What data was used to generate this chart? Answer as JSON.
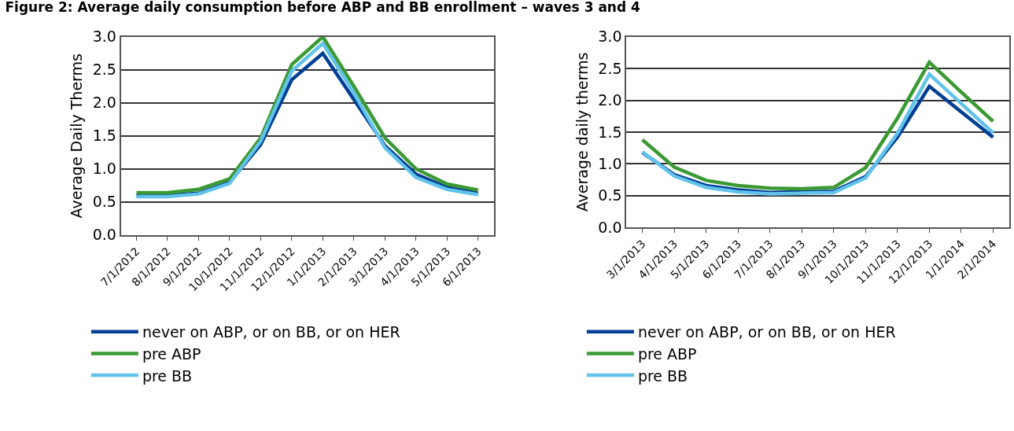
{
  "chart_data": [
    {
      "type": "line",
      "title": "Figure 2: Average daily consumption before ABP and BB enrollment – waves 3 and 4",
      "ylabel": "Average Daily Therms",
      "categories": [
        "7/1/2012",
        "8/1/2012",
        "9/1/2012",
        "10/1/2012",
        "11/1/2012",
        "12/1/2012",
        "1/1/2013",
        "2/1/2013",
        "3/1/2013",
        "4/1/2013",
        "5/1/2013",
        "6/1/2013"
      ],
      "series": [
        {
          "name": "never on ABP, or on BB, or on HER",
          "color": "#003f94",
          "values": [
            0.6,
            0.6,
            0.63,
            0.8,
            1.37,
            2.35,
            2.75,
            2.05,
            1.35,
            0.92,
            0.72,
            0.63
          ]
        },
        {
          "name": "pre ABP",
          "color": "#3c9a35",
          "values": [
            0.64,
            0.64,
            0.69,
            0.85,
            1.47,
            2.58,
            3.0,
            2.25,
            1.47,
            1.0,
            0.77,
            0.68
          ]
        },
        {
          "name": "pre BB",
          "color": "#62c3ea",
          "values": [
            0.58,
            0.58,
            0.62,
            0.78,
            1.42,
            2.48,
            2.9,
            2.15,
            1.32,
            0.87,
            0.69,
            0.61
          ]
        }
      ],
      "ylim": [
        0,
        3
      ],
      "yticks": [
        {
          "value": 0,
          "label": "0.0"
        },
        0.5,
        {
          "value": 1,
          "label": "1.0"
        },
        1.5,
        {
          "value": 2,
          "label": "2.0"
        },
        2.5,
        {
          "value": 3,
          "label": "3.0"
        }
      ],
      "grid": "y",
      "legend": "bottom"
    },
    {
      "type": "line",
      "ylabel": "Average daily therms",
      "categories": [
        "3/1/2013",
        "4/1/2013",
        "5/1/2013",
        "6/1/2013",
        "7/1/2013",
        "8/1/2013",
        "9/1/2013",
        "10/1/2013",
        "11/1/2013",
        "12/1/2013",
        "1/1/2014",
        "2/1/2014"
      ],
      "series": [
        {
          "name": "never on ABP, or on BB, or on HER",
          "color": "#003f94",
          "values": [
            1.18,
            0.83,
            0.66,
            0.59,
            0.55,
            0.56,
            0.57,
            0.8,
            1.42,
            2.22,
            1.82,
            1.42
          ]
        },
        {
          "name": "pre ABP",
          "color": "#3c9a35",
          "values": [
            1.38,
            0.95,
            0.74,
            0.66,
            0.62,
            0.61,
            0.63,
            0.94,
            1.72,
            2.6,
            2.13,
            1.67
          ]
        },
        {
          "name": "pre BB",
          "color": "#62c3ea",
          "values": [
            1.19,
            0.81,
            0.63,
            0.56,
            0.53,
            0.54,
            0.55,
            0.78,
            1.48,
            2.41,
            1.95,
            1.49
          ]
        }
      ],
      "ylim": [
        0,
        3
      ],
      "yticks": [
        {
          "value": 0,
          "label": "0.0"
        },
        0.5,
        {
          "value": 1,
          "label": "1.0"
        },
        1.5,
        {
          "value": 2,
          "label": "2.0"
        },
        2.5,
        {
          "value": 3,
          "label": "3.0"
        }
      ],
      "grid": "y",
      "legend": "bottom"
    }
  ]
}
